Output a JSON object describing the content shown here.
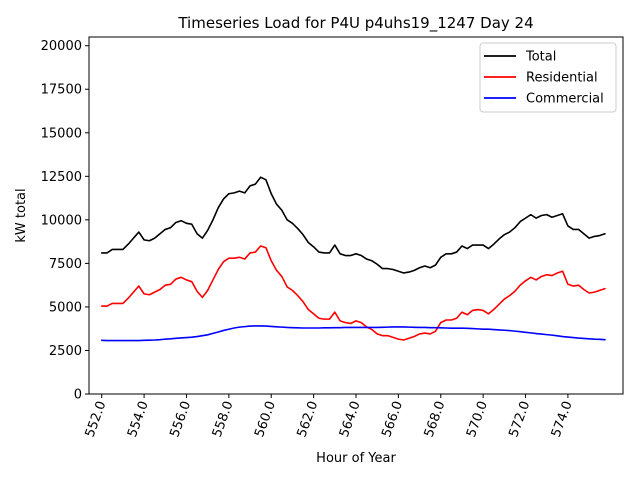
{
  "chart_data": {
    "type": "line",
    "title": "Timeseries Load for P4U p4uhs19_1247  Day 24",
    "xlabel": "Hour of Year",
    "ylabel": "kW total",
    "xlim": [
      551.4,
      576.6
    ],
    "ylim": [
      0,
      20500
    ],
    "x_ticks": [
      552.0,
      554.0,
      556.0,
      558.0,
      560.0,
      562.0,
      564.0,
      566.0,
      568.0,
      570.0,
      572.0,
      574.0
    ],
    "x_tick_labels": [
      "552.0",
      "554.0",
      "556.0",
      "558.0",
      "560.0",
      "562.0",
      "564.0",
      "566.0",
      "568.0",
      "570.0",
      "572.0",
      "574.0"
    ],
    "y_ticks": [
      0,
      2500,
      5000,
      7500,
      10000,
      12500,
      15000,
      17500,
      20000
    ],
    "y_tick_labels": [
      "0",
      "2500",
      "5000",
      "7500",
      "10000",
      "12500",
      "15000",
      "17500",
      "20000"
    ],
    "legend_position": "top-right",
    "x": [
      552.0,
      552.25,
      552.5,
      552.75,
      553.0,
      553.25,
      553.5,
      553.75,
      554.0,
      554.25,
      554.5,
      554.75,
      555.0,
      555.25,
      555.5,
      555.75,
      556.0,
      556.25,
      556.5,
      556.75,
      557.0,
      557.25,
      557.5,
      557.75,
      558.0,
      558.25,
      558.5,
      558.75,
      559.0,
      559.25,
      559.5,
      559.75,
      560.0,
      560.25,
      560.5,
      560.75,
      561.0,
      561.25,
      561.5,
      561.75,
      562.0,
      562.25,
      562.5,
      562.75,
      563.0,
      563.25,
      563.5,
      563.75,
      564.0,
      564.25,
      564.5,
      564.75,
      565.0,
      565.25,
      565.5,
      565.75,
      566.0,
      566.25,
      566.5,
      566.75,
      567.0,
      567.25,
      567.5,
      567.75,
      568.0,
      568.25,
      568.5,
      568.75,
      569.0,
      569.25,
      569.5,
      569.75,
      570.0,
      570.25,
      570.5,
      570.75,
      571.0,
      571.25,
      571.5,
      571.75,
      572.0,
      572.25,
      572.5,
      572.75,
      573.0,
      573.25,
      573.5,
      573.75,
      574.0,
      574.25,
      574.5,
      574.75,
      575.0,
      575.25,
      575.5,
      575.75
    ],
    "series": [
      {
        "name": "Total",
        "color": "#000000",
        "values": [
          8100,
          8100,
          8300,
          8300,
          8300,
          8600,
          8950,
          9300,
          8850,
          8800,
          8950,
          9200,
          9450,
          9550,
          9850,
          9950,
          9800,
          9750,
          9200,
          8950,
          9400,
          10000,
          10700,
          11200,
          11500,
          11550,
          11650,
          11550,
          11950,
          12050,
          12450,
          12300,
          11500,
          10900,
          10550,
          10000,
          9800,
          9500,
          9150,
          8700,
          8450,
          8150,
          8100,
          8100,
          8550,
          8050,
          7950,
          7950,
          8050,
          7950,
          7750,
          7650,
          7450,
          7200,
          7200,
          7150,
          7050,
          6950,
          7000,
          7100,
          7250,
          7350,
          7250,
          7400,
          7850,
          8050,
          8050,
          8150,
          8500,
          8350,
          8550,
          8550,
          8550,
          8350,
          8600,
          8900,
          9150,
          9300,
          9550,
          9900,
          10100,
          10300,
          10100,
          10250,
          10300,
          10150,
          10250,
          10350,
          9650,
          9450,
          9450,
          9200,
          8950,
          9050,
          9100,
          9200
        ]
      },
      {
        "name": "Residential",
        "color": "#ff0000",
        "values": [
          5050,
          5050,
          5200,
          5200,
          5200,
          5500,
          5850,
          6200,
          5750,
          5700,
          5850,
          6000,
          6250,
          6300,
          6600,
          6700,
          6550,
          6450,
          5900,
          5550,
          5950,
          6550,
          7150,
          7600,
          7800,
          7800,
          7850,
          7750,
          8100,
          8150,
          8500,
          8400,
          7650,
          7100,
          6750,
          6150,
          5950,
          5650,
          5300,
          4850,
          4600,
          4350,
          4300,
          4300,
          4700,
          4200,
          4100,
          4050,
          4200,
          4100,
          3850,
          3700,
          3450,
          3350,
          3350,
          3250,
          3150,
          3100,
          3200,
          3300,
          3450,
          3500,
          3450,
          3600,
          4100,
          4250,
          4250,
          4350,
          4700,
          4550,
          4800,
          4850,
          4800,
          4600,
          4850,
          5150,
          5450,
          5650,
          5900,
          6250,
          6500,
          6700,
          6550,
          6750,
          6850,
          6800,
          6950,
          7050,
          6300,
          6200,
          6250,
          6000,
          5800,
          5850,
          5950,
          6050
        ]
      },
      {
        "name": "Commercial",
        "color": "#0000ff",
        "values": [
          3080,
          3070,
          3070,
          3070,
          3070,
          3070,
          3070,
          3070,
          3080,
          3090,
          3100,
          3120,
          3150,
          3170,
          3200,
          3220,
          3240,
          3260,
          3300,
          3350,
          3400,
          3480,
          3560,
          3650,
          3720,
          3790,
          3840,
          3870,
          3900,
          3910,
          3910,
          3900,
          3880,
          3860,
          3840,
          3820,
          3810,
          3800,
          3790,
          3790,
          3790,
          3790,
          3800,
          3800,
          3810,
          3810,
          3820,
          3820,
          3820,
          3820,
          3820,
          3820,
          3820,
          3830,
          3840,
          3850,
          3850,
          3850,
          3840,
          3830,
          3820,
          3820,
          3810,
          3810,
          3800,
          3790,
          3780,
          3780,
          3780,
          3770,
          3760,
          3740,
          3720,
          3720,
          3700,
          3680,
          3660,
          3640,
          3610,
          3580,
          3540,
          3510,
          3470,
          3440,
          3410,
          3380,
          3340,
          3300,
          3270,
          3240,
          3210,
          3190,
          3170,
          3150,
          3140,
          3120
        ]
      }
    ]
  }
}
